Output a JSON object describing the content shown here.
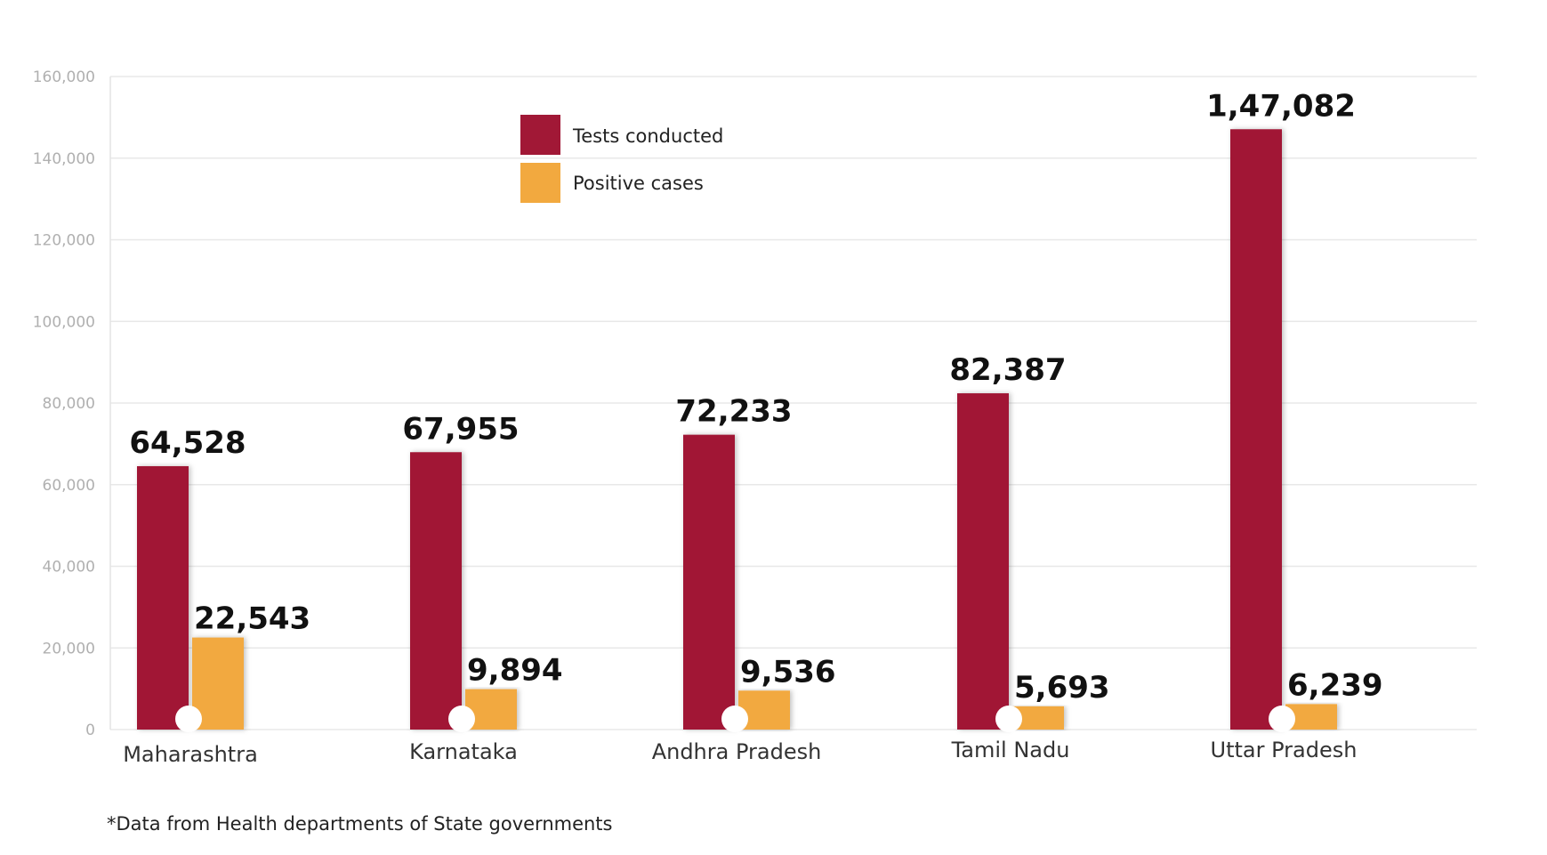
{
  "chart_data": {
    "type": "bar",
    "categories": [
      "Maharashtra",
      "Karnataka",
      "Andhra Pradesh",
      "Tamil Nadu",
      "Uttar Pradesh"
    ],
    "series": [
      {
        "name": "Tests conducted",
        "values": [
          64528,
          67955,
          72233,
          82387,
          147082
        ],
        "labels": [
          "64,528",
          "67,955",
          "72,233",
          "82,387",
          "1,47,082"
        ]
      },
      {
        "name": "Positive cases",
        "values": [
          22543,
          9894,
          9536,
          5693,
          6239
        ],
        "labels": [
          "22,543",
          "9,894",
          "9,536",
          "5,693",
          "6,239"
        ]
      }
    ],
    "y_ticks": [
      "0",
      "20,000",
      "40,000",
      "60,000",
      "80,000",
      "100,000",
      "120,000",
      "140,000",
      "160,000"
    ],
    "ylim": [
      0,
      160000
    ],
    "grid": true,
    "legend_position": "top-center",
    "colors": {
      "tests": "#a11836",
      "positive": "#f2a93f",
      "grid": "#e8e8e8"
    }
  },
  "footnote": "*Data from Health departments of State governments"
}
